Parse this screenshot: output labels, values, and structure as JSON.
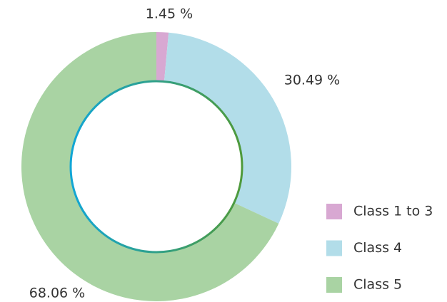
{
  "chart_data": {
    "type": "pie",
    "donut": true,
    "categories": [
      "Class 1 to 3",
      "Class 4",
      "Class 5"
    ],
    "values": [
      1.45,
      30.49,
      68.06
    ],
    "value_labels": [
      "1.45 %",
      "30.49 %",
      "68.06 %"
    ],
    "colors": [
      "#d8a8d2",
      "#b2dde9",
      "#a9d3a3"
    ],
    "legend": "bottom-right"
  }
}
